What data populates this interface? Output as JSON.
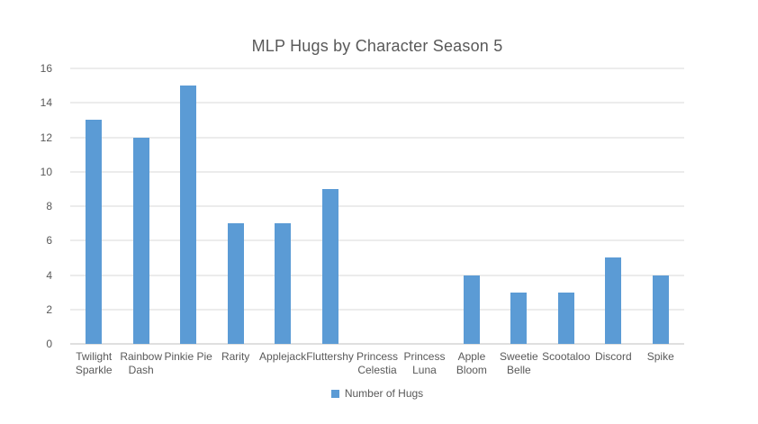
{
  "chart_data": {
    "type": "bar",
    "title": "MLP Hugs by Character Season 5",
    "categories": [
      "Twilight Sparkle",
      "Rainbow Dash",
      "Pinkie Pie",
      "Rarity",
      "Applejack",
      "Fluttershy",
      "Princess Celestia",
      "Princess Luna",
      "Apple Bloom",
      "Sweetie Belle",
      "Scootaloo",
      "Discord",
      "Spike"
    ],
    "series": [
      {
        "name": "Number of Hugs",
        "values": [
          13,
          12,
          15,
          7,
          7,
          9,
          0,
          0,
          4,
          3,
          3,
          5,
          4
        ]
      }
    ],
    "xlabel": "",
    "ylabel": "",
    "ylim": [
      0,
      16
    ],
    "yticks": [
      0,
      2,
      4,
      6,
      8,
      10,
      12,
      14,
      16
    ],
    "grid": true,
    "legend_position": "bottom",
    "colors": {
      "bar": "#5B9BD5",
      "gridline": "#D9D9D9",
      "axis_line": "#BFBFBF",
      "text": "#595959",
      "background": "#FFFFFF"
    }
  }
}
